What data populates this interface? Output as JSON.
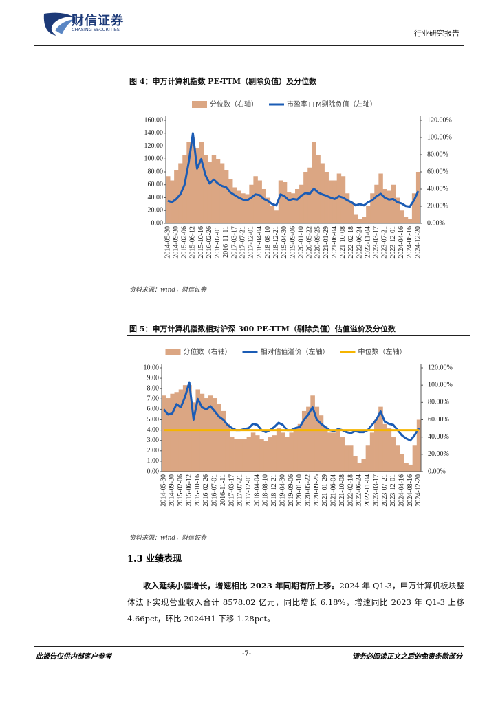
{
  "header": {
    "brand": "财信证券",
    "brand_en": "CHASING SECURITIES",
    "doc_type": "行业研究报告"
  },
  "chart_data": [
    {
      "type": "combo",
      "title": "图 4：申万计算机指数 PE-TTM（剔除负值）及分位数",
      "source": "资料来源：wind，财信证券",
      "categories": [
        "2014-05-30",
        null,
        "2014-09-30",
        null,
        "2015-02-06",
        null,
        "2015-06-12",
        null,
        "2015-10-16",
        null,
        "2016-02-26",
        null,
        "2016-07-01",
        null,
        "2016-11-11",
        null,
        "2017-03-17",
        null,
        "2017-07-21",
        null,
        "2017-12-01",
        null,
        "2018-04-04",
        null,
        "2018-08-10",
        null,
        "2018-12-21",
        null,
        "2019-04-30",
        null,
        "2019-09-06",
        null,
        "2020-01-10",
        null,
        "2020-05-22",
        null,
        "2020-09-25",
        null,
        "2021-01-29",
        null,
        "2021-06-04",
        null,
        "2021-10-08",
        null,
        "2022-02-18",
        null,
        "2022-06-24",
        null,
        "2022-11-04",
        null,
        "2023-03-17",
        null,
        "2023-07-21",
        null,
        "2023-12-01",
        null,
        "2024-04-16",
        null,
        "2024-08-16",
        null,
        "2024-12-20"
      ],
      "series": [
        {
          "name": "分位数（右轴）",
          "type": "bar",
          "axis": "y2",
          "color": "#dba683",
          "values": [
            55,
            50,
            62,
            70,
            80,
            95,
            100,
            88,
            95,
            80,
            72,
            80,
            75,
            70,
            62,
            52,
            42,
            38,
            35,
            34,
            45,
            55,
            50,
            40,
            30,
            20,
            15,
            50,
            48,
            36,
            35,
            40,
            45,
            60,
            65,
            95,
            80,
            70,
            60,
            50,
            50,
            58,
            55,
            35,
            25,
            10,
            5,
            8,
            20,
            35,
            45,
            58,
            40,
            38,
            45,
            30,
            15,
            8,
            5,
            35,
            60
          ]
        },
        {
          "name": "市盈率TTM剔除负值（左轴）",
          "type": "line",
          "axis": "y",
          "color": "#1b5cb5",
          "values": [
            35,
            33,
            38,
            45,
            60,
            95,
            140,
            85,
            100,
            75,
            62,
            68,
            62,
            58,
            56,
            48,
            44,
            40,
            37,
            36,
            40,
            45,
            44,
            38,
            35,
            30,
            28,
            45,
            42,
            36,
            38,
            37,
            43,
            47,
            46,
            54,
            48,
            45,
            43,
            40,
            38,
            42,
            40,
            36,
            33,
            28,
            30,
            28,
            33,
            36,
            42,
            46,
            40,
            37,
            38,
            33,
            31,
            27,
            26,
            36,
            50
          ]
        }
      ],
      "ylim": [
        0,
        160
      ],
      "yticks": [
        {
          "value": 0,
          "label": "0.00"
        },
        {
          "value": 20,
          "label": "20.00"
        },
        {
          "value": 40,
          "label": "40.00"
        },
        {
          "value": 60,
          "label": "60.00"
        },
        {
          "value": 80,
          "label": "80.00"
        },
        {
          "value": 100,
          "label": "100.00"
        },
        {
          "value": 120,
          "label": "120.00"
        },
        {
          "value": 140,
          "label": "140.00"
        },
        {
          "value": 160,
          "label": "160.00"
        }
      ],
      "y2lim": [
        0,
        120
      ],
      "y2ticks": [
        {
          "value": 0,
          "label": "0.00%"
        },
        {
          "value": 20,
          "label": "20.00%"
        },
        {
          "value": 40,
          "label": "40.00%"
        },
        {
          "value": 60,
          "label": "60.00%"
        },
        {
          "value": 80,
          "label": "80.00%"
        },
        {
          "value": 100,
          "label": "100.00%"
        },
        {
          "value": 120,
          "label": "120.00%"
        }
      ],
      "legend": "top"
    },
    {
      "type": "combo",
      "title": "图 5：申万计算机指数相对沪深 300 PE-TTM（剔除负值）估值溢价及分位数",
      "source": "资料来源：wind，财信证券",
      "categories": [
        "2014-05-30",
        null,
        "2014-09-30",
        null,
        "2015-02-06",
        null,
        "2015-06-12",
        null,
        "2015-10-16",
        null,
        "2016-02-26",
        null,
        "2016-07-01",
        null,
        "2016-11-11",
        null,
        "2017-03-17",
        null,
        "2017-07-21",
        null,
        "2017-12-01",
        null,
        "2018-04-04",
        null,
        "2018-08-10",
        null,
        "2018-12-21",
        null,
        "2019-04-30",
        null,
        "2019-09-06",
        null,
        "2020-01-10",
        null,
        "2020-05-22",
        null,
        "2020-09-25",
        null,
        "2021-01-29",
        null,
        "2021-06-04",
        null,
        "2021-10-08",
        null,
        "2022-02-18",
        null,
        "2022-06-24",
        null,
        "2022-11-04",
        null,
        "2023-03-17",
        null,
        "2023-07-21",
        null,
        "2023-12-01",
        null,
        "2024-04-16",
        null,
        "2024-08-16",
        null,
        "2024-12-20"
      ],
      "series": [
        {
          "name": "分位数（右轴）",
          "type": "bar",
          "axis": "y2",
          "color": "#dba683",
          "values": [
            88,
            85,
            90,
            92,
            95,
            100,
            100,
            80,
            95,
            90,
            85,
            88,
            85,
            78,
            70,
            55,
            40,
            38,
            38,
            38,
            40,
            45,
            42,
            38,
            35,
            40,
            42,
            50,
            45,
            40,
            45,
            50,
            55,
            70,
            75,
            88,
            75,
            65,
            52,
            45,
            45,
            48,
            40,
            30,
            30,
            18,
            10,
            15,
            30,
            45,
            60,
            75,
            55,
            50,
            40,
            30,
            20,
            10,
            8,
            30,
            60
          ]
        },
        {
          "name": "相对估值溢价（左轴）",
          "type": "line",
          "axis": "y",
          "color": "#1b5cb5",
          "values": [
            6.0,
            5.5,
            5.6,
            6.5,
            6.2,
            7.2,
            8.6,
            5.0,
            7.0,
            6.2,
            6.0,
            6.3,
            5.8,
            5.3,
            5.0,
            4.5,
            4.2,
            4.0,
            4.0,
            4.1,
            4.2,
            4.6,
            4.5,
            4.0,
            3.8,
            4.0,
            4.3,
            4.7,
            4.5,
            4.0,
            4.0,
            4.2,
            4.3,
            5.0,
            5.5,
            6.2,
            5.0,
            4.6,
            4.3,
            4.0,
            3.9,
            4.1,
            4.0,
            3.8,
            3.7,
            3.9,
            3.8,
            3.8,
            4.0,
            4.5,
            5.0,
            5.8,
            4.8,
            4.6,
            4.5,
            4.0,
            3.5,
            3.2,
            3.0,
            3.5,
            4.2
          ]
        },
        {
          "name": "中位数（左轴）",
          "type": "line",
          "axis": "y",
          "color": "#f5b400",
          "values": [
            4,
            4,
            4,
            4,
            4,
            4,
            4,
            4,
            4,
            4,
            4,
            4,
            4,
            4,
            4,
            4,
            4,
            4,
            4,
            4,
            4,
            4,
            4,
            4,
            4,
            4,
            4,
            4,
            4,
            4,
            4,
            4,
            4,
            4,
            4,
            4,
            4,
            4,
            4,
            4,
            4,
            4,
            4,
            4,
            4,
            4,
            4,
            4,
            4,
            4,
            4,
            4,
            4,
            4,
            4,
            4,
            4,
            4,
            4,
            4,
            4
          ]
        }
      ],
      "ylim": [
        0,
        10
      ],
      "yticks": [
        {
          "value": 0,
          "label": "0.00"
        },
        {
          "value": 1,
          "label": "1.00"
        },
        {
          "value": 2,
          "label": "2.00"
        },
        {
          "value": 3,
          "label": "3.00"
        },
        {
          "value": 4,
          "label": "4.00"
        },
        {
          "value": 5,
          "label": "5.00"
        },
        {
          "value": 6,
          "label": "6.00"
        },
        {
          "value": 7,
          "label": "7.00"
        },
        {
          "value": 8,
          "label": "8.00"
        },
        {
          "value": 9,
          "label": "9.00"
        },
        {
          "value": 10,
          "label": "10.00"
        }
      ],
      "y2lim": [
        0,
        120
      ],
      "y2ticks": [
        {
          "value": 0,
          "label": "0.00%"
        },
        {
          "value": 20,
          "label": "20.00%"
        },
        {
          "value": 40,
          "label": "40.00%"
        },
        {
          "value": 60,
          "label": "60.00%"
        },
        {
          "value": 80,
          "label": "80.00%"
        },
        {
          "value": 100,
          "label": "100.00%"
        },
        {
          "value": 120,
          "label": "120.00%"
        }
      ],
      "legend": "top"
    }
  ],
  "section": {
    "heading": "1.3 业绩表现",
    "lead": "收入延续小幅增长，增速相比 2023 年同期有所上移。",
    "body": "2024 年 Q1-3，申万计算机板块整体法下实现营业收入合计 8578.02 亿元，同比增长 6.18%，增速同比 2023 年 Q1-3 上移 4.66pct，环比 2024H1 下移 1.28pct。"
  },
  "footer": {
    "left": "此报告仅供内部客户参考",
    "page": "-7-",
    "right": "请务必阅读正文之后的免责条款部分"
  }
}
